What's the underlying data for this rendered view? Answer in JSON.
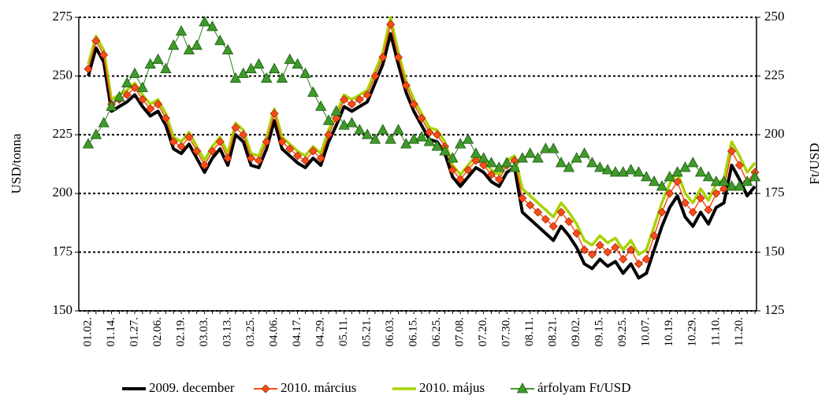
{
  "chart_data": {
    "type": "line",
    "y_label": "USD/tonna",
    "y2_label": "Ft/USD",
    "categories": [
      "01.02.",
      null,
      null,
      "01.14.",
      null,
      null,
      "01.27.",
      null,
      null,
      "02.06.",
      null,
      null,
      "02.19.",
      null,
      null,
      "03.03.",
      null,
      null,
      "03.13.",
      null,
      null,
      "03.25.",
      null,
      null,
      "04.06.",
      null,
      null,
      "04.17.",
      null,
      null,
      "04.29.",
      null,
      null,
      "05.11.",
      null,
      null,
      "05.21.",
      null,
      null,
      "06.03.",
      null,
      null,
      "06.15.",
      null,
      null,
      "06.25.",
      null,
      null,
      "07.08.",
      null,
      null,
      "07.20.",
      null,
      null,
      "07.30.",
      null,
      null,
      "08.11.",
      null,
      null,
      "08.21.",
      null,
      null,
      "09.02.",
      null,
      null,
      "09.15.",
      null,
      null,
      "09.25.",
      null,
      null,
      "10.07.",
      null,
      null,
      "10.19.",
      null,
      null,
      "10.29.",
      null,
      null,
      "11.10.",
      null,
      null,
      "11.20.",
      null,
      null
    ],
    "series": [
      {
        "name": "2009. december",
        "color": "#000000",
        "marker": null,
        "values": [
          250,
          262,
          256,
          235,
          237,
          239,
          242,
          237,
          233,
          235,
          229,
          219,
          217,
          221,
          215,
          209,
          215,
          219,
          212,
          225,
          222,
          212,
          211,
          219,
          231,
          219,
          216,
          213,
          211,
          215,
          212,
          222,
          229,
          237,
          235,
          237,
          239,
          247,
          255,
          268,
          255,
          243,
          235,
          229,
          223,
          222,
          217,
          207,
          203,
          207,
          211,
          209,
          205,
          203,
          209,
          211,
          192,
          189,
          186,
          183,
          180,
          186,
          182,
          177,
          170,
          168,
          172,
          169,
          171,
          166,
          170,
          164,
          166,
          176,
          186,
          194,
          199,
          190,
          186,
          192,
          187,
          194,
          196,
          212,
          206,
          199,
          203
        ]
      },
      {
        "name": "2010. március",
        "color": "#ff4a1a",
        "marker": "diamond",
        "values": [
          253,
          265,
          259,
          238,
          240,
          242,
          245,
          240,
          236,
          238,
          232,
          222,
          220,
          224,
          218,
          212,
          218,
          222,
          215,
          228,
          225,
          215,
          214,
          222,
          234,
          222,
          219,
          216,
          214,
          218,
          215,
          225,
          232,
          240,
          238,
          240,
          242,
          250,
          258,
          272,
          258,
          246,
          238,
          232,
          226,
          225,
          220,
          210,
          206,
          210,
          214,
          212,
          208,
          206,
          212,
          214,
          198,
          195,
          192,
          189,
          186,
          192,
          188,
          183,
          176,
          174,
          178,
          175,
          177,
          172,
          176,
          170,
          172,
          182,
          192,
          200,
          205,
          196,
          192,
          198,
          193,
          200,
          202,
          218,
          212,
          205,
          209
        ]
      },
      {
        "name": "2010. május",
        "color": "#a6d400",
        "marker": null,
        "values": [
          255,
          267,
          261,
          240,
          242,
          244,
          247,
          242,
          238,
          240,
          234,
          224,
          222,
          226,
          220,
          214,
          220,
          224,
          217,
          230,
          227,
          217,
          216,
          224,
          236,
          224,
          221,
          218,
          216,
          220,
          217,
          227,
          234,
          242,
          240,
          242,
          244,
          252,
          260,
          275,
          260,
          248,
          240,
          234,
          228,
          227,
          222,
          212,
          208,
          212,
          216,
          214,
          210,
          208,
          214,
          216,
          202,
          199,
          196,
          193,
          190,
          196,
          192,
          187,
          180,
          178,
          182,
          179,
          181,
          176,
          180,
          174,
          176,
          186,
          196,
          204,
          209,
          200,
          196,
          202,
          197,
          204,
          206,
          222,
          216,
          209,
          213
        ]
      },
      {
        "name": "árfolyam Ft/USD",
        "color": "#3f9a2a",
        "marker": "triangle",
        "axis": "y2",
        "values": [
          196,
          200,
          205,
          212,
          216,
          222,
          226,
          220,
          230,
          232,
          228,
          238,
          244,
          236,
          238,
          248,
          246,
          240,
          236,
          224,
          226,
          228,
          230,
          224,
          228,
          224,
          232,
          230,
          226,
          218,
          212,
          206,
          210,
          204,
          205,
          202,
          200,
          198,
          202,
          198,
          202,
          196,
          198,
          199,
          197,
          195,
          193,
          190,
          196,
          198,
          192,
          190,
          188,
          186,
          188,
          186,
          190,
          192,
          190,
          194,
          194,
          188,
          186,
          190,
          192,
          188,
          186,
          185,
          184,
          184,
          185,
          184,
          182,
          180,
          178,
          182,
          184,
          186,
          188,
          184,
          182,
          180,
          180,
          178,
          178,
          180,
          182
        ]
      }
    ],
    "ylim": [
      150,
      275
    ],
    "yticks": [
      150,
      175,
      200,
      225,
      250,
      275
    ],
    "y2lim": [
      125,
      250
    ],
    "y2ticks": [
      125,
      150,
      175,
      200,
      225,
      250
    ],
    "grid": true,
    "legend": "bottom"
  }
}
